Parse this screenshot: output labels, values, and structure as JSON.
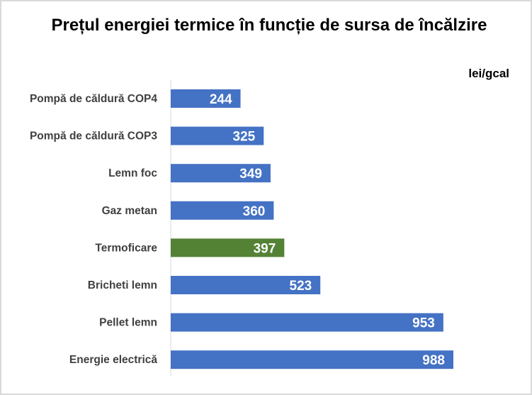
{
  "chart_data": {
    "type": "bar",
    "orientation": "horizontal",
    "title": "Prețul energiei termice în funcție de sursa de încălzire",
    "unit_label": "lei/gcal",
    "xlabel": "",
    "ylabel": "",
    "categories": [
      "Pompă de căldură COP4",
      "Pompă de căldură COP3",
      "Lemn foc",
      "Gaz metan",
      "Termoficare",
      "Bricheti lemn",
      "Pellet lemn",
      "Energie electrică"
    ],
    "values": [
      244,
      325,
      349,
      360,
      397,
      523,
      953,
      988
    ],
    "xlim": [
      0,
      988
    ],
    "highlight_index": 4,
    "colors": {
      "default": "#4472C4",
      "highlight": "#548235"
    },
    "grid": false,
    "legend": "none"
  }
}
